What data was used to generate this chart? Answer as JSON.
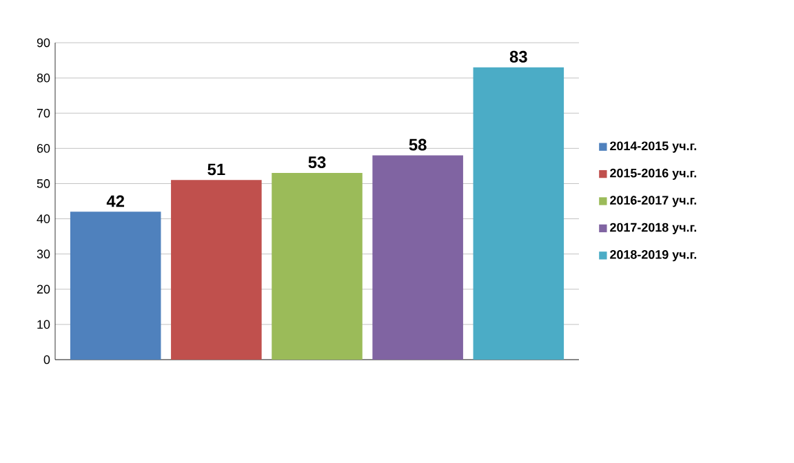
{
  "chart_data": {
    "type": "bar",
    "categories": [
      null,
      null,
      null,
      null,
      null
    ],
    "series": [
      {
        "name": "2014-2015  уч.г.",
        "color": "#4f81bd",
        "values": [
          42,
          null,
          null,
          null,
          null
        ]
      },
      {
        "name": "2015-2016 уч.г.",
        "color": "#c0504d",
        "values": [
          null,
          51,
          null,
          null,
          null
        ]
      },
      {
        "name": "2016-2017 уч.г.",
        "color": "#9bbb59",
        "values": [
          null,
          null,
          53,
          null,
          null
        ]
      },
      {
        "name": "2017-2018 уч.г.",
        "color": "#8064a2",
        "values": [
          null,
          null,
          null,
          58,
          null
        ]
      },
      {
        "name": "2018-2019 уч.г.",
        "color": "#4bacc6",
        "values": [
          null,
          null,
          null,
          null,
          83
        ]
      }
    ],
    "ylim": [
      0,
      90
    ],
    "yticks": [
      0,
      10,
      20,
      30,
      40,
      50,
      60,
      70,
      80,
      90
    ],
    "grid": "y",
    "legend": "right",
    "tick_labels": "y",
    "data_labels": true
  }
}
